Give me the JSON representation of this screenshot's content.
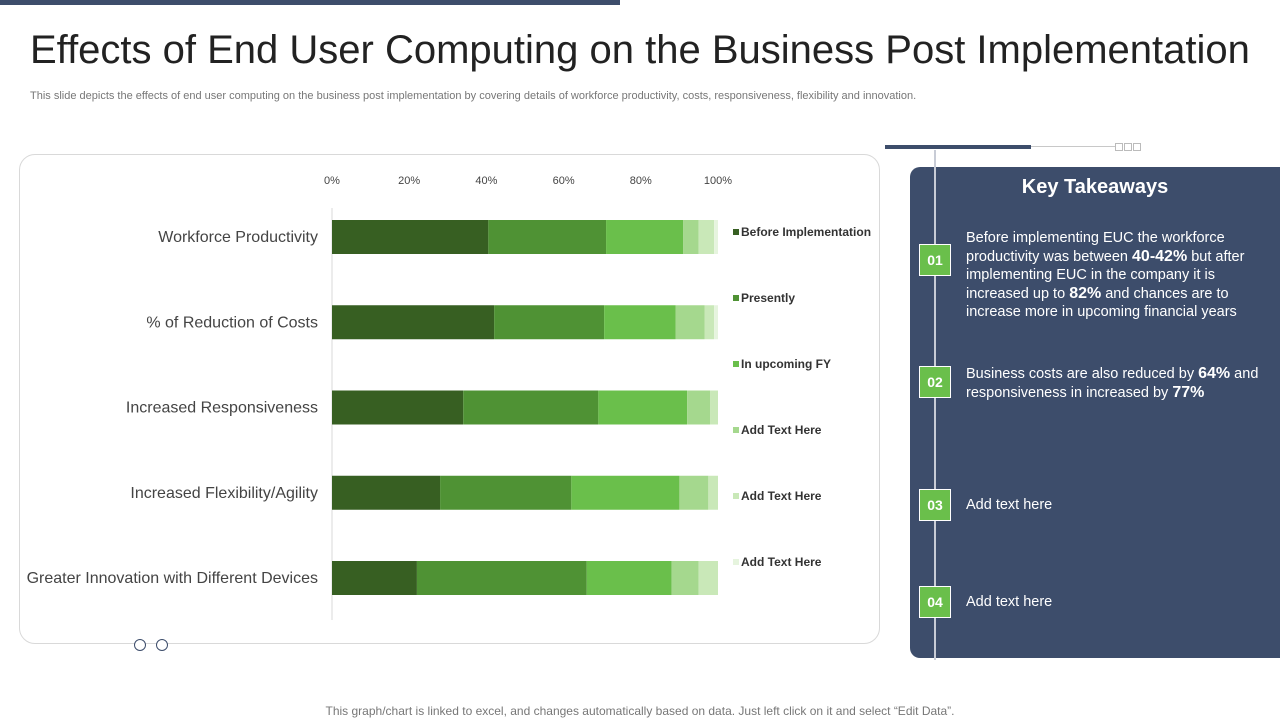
{
  "title": "Effects of End User Computing on the Business Post Implementation",
  "subtitle": "This slide depicts the effects of end user computing on the business post implementation by covering details of workforce productivity,  costs, responsiveness, flexibility and innovation.",
  "footer": "This graph/chart is linked to excel,  and changes automatically based on data. Just left click on it and select “Edit Data”.",
  "colors": {
    "accent": "#3d4d6b",
    "badge": "#6abf4b",
    "series": [
      "#375f22",
      "#4f9234",
      "#6abf4b",
      "#a5d88e",
      "#c9e8b8",
      "#e6f4de"
    ]
  },
  "chart_data": {
    "type": "bar",
    "orientation": "horizontal",
    "stacked": true,
    "categories": [
      "Workforce Productivity",
      "% of Reduction of Costs",
      "Increased Responsiveness",
      "Increased Flexibility/Agility",
      "Greater Innovation with Different Devices"
    ],
    "series": [
      {
        "name": "Before Implementation",
        "values": [
          40.5,
          42,
          34,
          28,
          22
        ]
      },
      {
        "name": "Presently",
        "values": [
          30.5,
          28.5,
          35,
          34,
          44
        ]
      },
      {
        "name": "In upcoming FY",
        "values": [
          20,
          18.5,
          23,
          28,
          22
        ]
      },
      {
        "name": "Add Text Here",
        "values": [
          4,
          7.5,
          6,
          7.5,
          7
        ]
      },
      {
        "name": "Add Text Here",
        "values": [
          4,
          2.5,
          2,
          2.5,
          5
        ]
      },
      {
        "name": "Add Text Here",
        "values": [
          1,
          1,
          0,
          0,
          0
        ]
      }
    ],
    "xticks": [
      "0%",
      "20%",
      "40%",
      "60%",
      "80%",
      "100%"
    ],
    "xlim": [
      0,
      100
    ],
    "legend_position": "right"
  },
  "takeaways": {
    "title": "Key Takeaways",
    "items": [
      {
        "num": "01",
        "parts": [
          {
            "t": "Before implementing EUC the workforce productivity was between "
          },
          {
            "t": "40-42%",
            "b": true
          },
          {
            "t": " but after implementing EUC in the company it is increased up to "
          },
          {
            "t": "82%",
            "b": true
          },
          {
            "t": " and chances are to increase more in upcoming financial years"
          }
        ]
      },
      {
        "num": "02",
        "parts": [
          {
            "t": "Business costs are also reduced by "
          },
          {
            "t": "64%",
            "b": true
          },
          {
            "t": " and responsiveness in increased by "
          },
          {
            "t": "77%",
            "b": true
          }
        ]
      },
      {
        "num": "03",
        "parts": [
          {
            "t": "Add text here"
          }
        ]
      },
      {
        "num": "04",
        "parts": [
          {
            "t": "Add text here"
          }
        ]
      }
    ]
  }
}
